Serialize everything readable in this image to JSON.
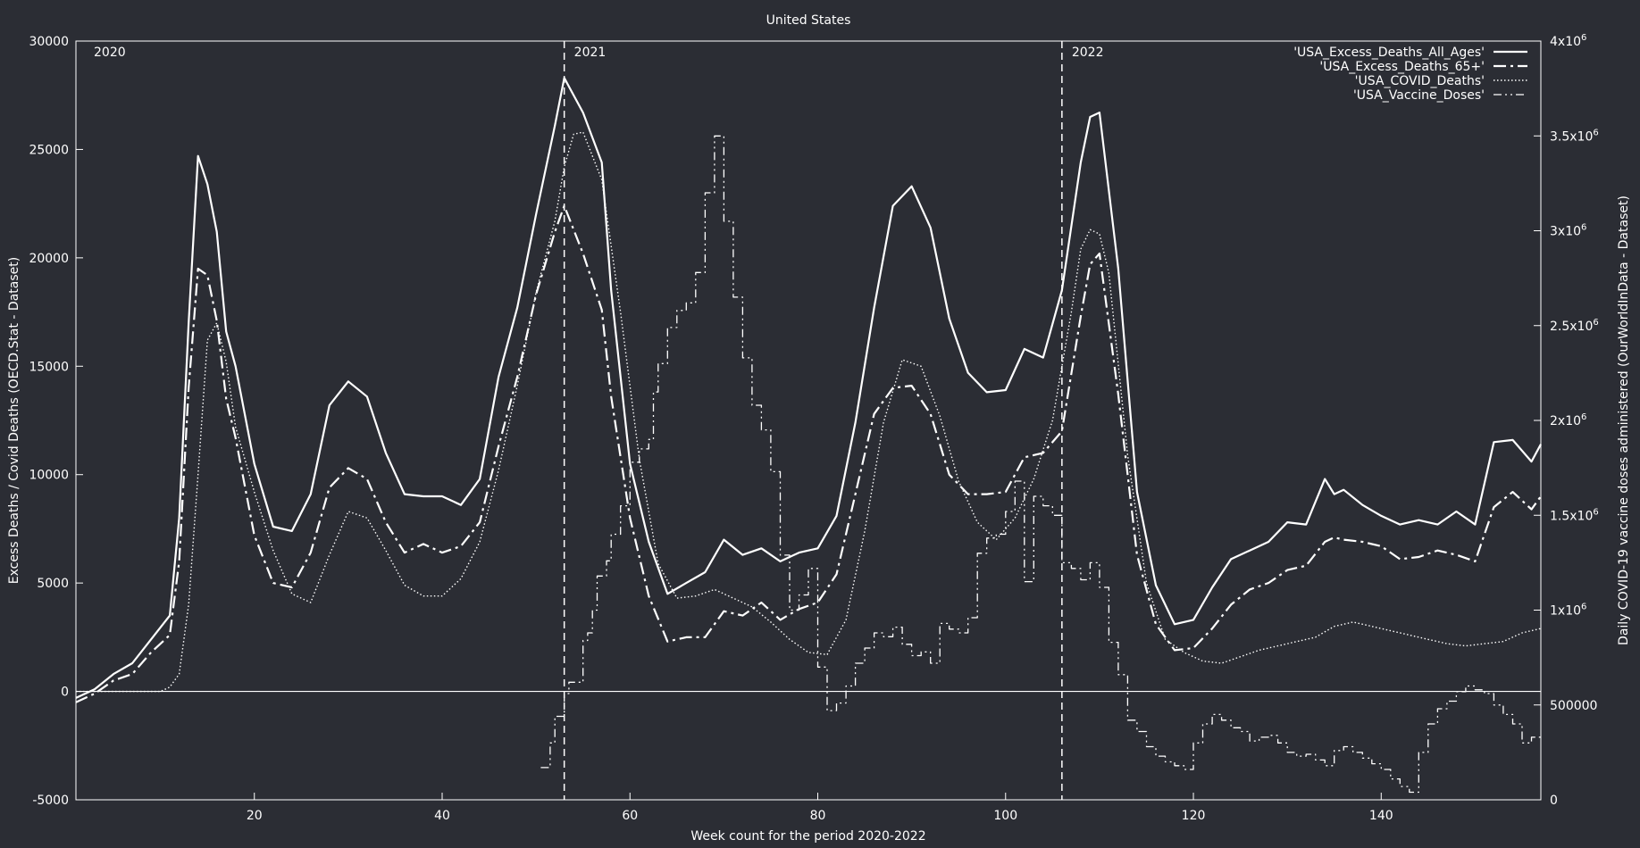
{
  "chart_data": {
    "type": "line",
    "title": "United States",
    "xlabel": "Week count for the period 2020-2022",
    "ylabel": "Excess Deaths / Covid Deaths (OECD.Stat - Dataset)",
    "y2label": "Daily COVID-19 vaccine doses administered (OurWorldInData - Dataset)",
    "xlim": [
      1,
      157
    ],
    "ylim": [
      -5000,
      30000
    ],
    "y2lim": [
      0,
      4000000
    ],
    "x_ticks": [
      20,
      40,
      60,
      80,
      100,
      120,
      140
    ],
    "y_ticks": [
      -5000,
      0,
      5000,
      10000,
      15000,
      20000,
      25000,
      30000
    ],
    "y2_ticks": [
      {
        "value": 0,
        "label": "0"
      },
      {
        "value": 500000,
        "label": "500000"
      },
      {
        "value": 1000000,
        "label": "1x10",
        "exp": "6"
      },
      {
        "value": 1500000,
        "label": "1.5x10",
        "exp": "6"
      },
      {
        "value": 2000000,
        "label": "2x10",
        "exp": "6"
      },
      {
        "value": 2500000,
        "label": "2.5x10",
        "exp": "6"
      },
      {
        "value": 3000000,
        "label": "3x10",
        "exp": "6"
      },
      {
        "value": 3500000,
        "label": "3.5x10",
        "exp": "6"
      },
      {
        "value": 4000000,
        "label": "4x10",
        "exp": "6"
      }
    ],
    "grid": false,
    "legend_position": "top-right",
    "year_markers": [
      {
        "label": "2020",
        "x": 1,
        "line": false
      },
      {
        "label": "2021",
        "x": 53,
        "line": true
      },
      {
        "label": "2022",
        "x": 106,
        "line": true
      }
    ],
    "colors": {
      "background": "#2b2d34",
      "foreground": "#ffffff"
    },
    "series": [
      {
        "name": "'USA_Excess_Deaths_All_Ages'",
        "axis": "y1",
        "dash": "solid",
        "x": [
          1,
          3,
          5,
          7,
          9,
          11,
          12,
          13,
          14,
          15,
          16,
          17,
          18,
          20,
          22,
          24,
          26,
          28,
          30,
          32,
          34,
          36,
          38,
          40,
          42,
          44,
          46,
          48,
          50,
          52,
          53,
          55,
          57,
          58,
          60,
          62,
          64,
          66,
          68,
          70,
          72,
          74,
          76,
          78,
          80,
          82,
          84,
          86,
          88,
          90,
          92,
          94,
          96,
          98,
          100,
          102,
          104,
          106,
          108,
          109,
          110,
          112,
          114,
          116,
          118,
          120,
          122,
          124,
          126,
          128,
          130,
          132,
          134,
          135,
          136,
          138,
          140,
          142,
          144,
          146,
          148,
          150,
          152,
          154,
          156,
          157
        ],
        "y": [
          -300,
          100,
          800,
          1300,
          2400,
          3500,
          8000,
          17000,
          24700,
          23400,
          21200,
          16600,
          15000,
          10500,
          7600,
          7400,
          9100,
          13200,
          14300,
          13600,
          11000,
          9100,
          9000,
          9000,
          8600,
          9800,
          14500,
          17700,
          22000,
          26100,
          28300,
          26700,
          24400,
          18500,
          10500,
          6900,
          4500,
          5000,
          5500,
          7000,
          6300,
          6600,
          6000,
          6400,
          6600,
          8100,
          12400,
          17700,
          22400,
          23300,
          21400,
          17200,
          14700,
          13800,
          13900,
          15800,
          15400,
          18500,
          24400,
          26500,
          26700,
          19500,
          9200,
          4900,
          3100,
          3300,
          4800,
          6100,
          6500,
          6900,
          7800,
          7700,
          9800,
          9100,
          9300,
          8600,
          8100,
          7700,
          7900,
          7700,
          8300,
          7700,
          11500,
          11600,
          10600,
          11400
        ]
      },
      {
        "name": "'USA_Excess_Deaths_65+'",
        "axis": "y1",
        "dash": "dashdot",
        "x": [
          1,
          3,
          5,
          7,
          9,
          11,
          12,
          13,
          14,
          15,
          16,
          17,
          18,
          20,
          22,
          24,
          26,
          28,
          30,
          32,
          34,
          36,
          38,
          40,
          42,
          44,
          46,
          48,
          50,
          52,
          53,
          55,
          57,
          58,
          60,
          62,
          64,
          66,
          68,
          70,
          72,
          74,
          76,
          78,
          80,
          82,
          84,
          86,
          88,
          90,
          92,
          94,
          96,
          98,
          100,
          102,
          104,
          106,
          108,
          109,
          110,
          112,
          114,
          116,
          118,
          120,
          122,
          124,
          126,
          128,
          130,
          132,
          134,
          135,
          136,
          138,
          140,
          142,
          144,
          146,
          148,
          150,
          152,
          154,
          156,
          157
        ],
        "y": [
          -500,
          -100,
          500,
          800,
          1800,
          2600,
          6000,
          14000,
          19500,
          19200,
          17100,
          13500,
          11700,
          7200,
          5000,
          4800,
          6400,
          9400,
          10300,
          9800,
          7800,
          6400,
          6800,
          6400,
          6700,
          7800,
          11300,
          14500,
          18300,
          21200,
          22400,
          20200,
          17600,
          13600,
          8000,
          4400,
          2300,
          2500,
          2500,
          3700,
          3500,
          4100,
          3300,
          3800,
          4100,
          5400,
          9100,
          12800,
          14000,
          14100,
          12800,
          10000,
          9100,
          9100,
          9200,
          10800,
          11000,
          12000,
          17300,
          19700,
          20200,
          13700,
          6300,
          3100,
          1900,
          2000,
          2900,
          4000,
          4700,
          5000,
          5600,
          5800,
          6900,
          7100,
          7000,
          6900,
          6700,
          6100,
          6200,
          6500,
          6300,
          6000,
          8500,
          9200,
          8400,
          9000
        ]
      },
      {
        "name": "'USA_COVID_Deaths'",
        "axis": "y1",
        "dash": "dotted",
        "x": [
          1,
          5,
          10,
          11,
          12,
          13,
          14,
          15,
          16,
          17,
          18,
          20,
          22,
          24,
          26,
          28,
          30,
          32,
          34,
          36,
          38,
          40,
          42,
          44,
          46,
          48,
          50,
          52,
          53,
          54,
          55,
          57,
          59,
          61,
          63,
          65,
          67,
          69,
          71,
          73,
          75,
          77,
          79,
          81,
          83,
          85,
          87,
          89,
          91,
          93,
          95,
          97,
          99,
          101,
          103,
          105,
          107,
          108,
          109,
          110,
          111,
          113,
          115,
          117,
          119,
          121,
          123,
          125,
          127,
          129,
          131,
          133,
          135,
          137,
          139,
          141,
          143,
          145,
          147,
          149,
          151,
          153,
          155,
          157
        ],
        "y": [
          0,
          0,
          0,
          200,
          800,
          4000,
          10000,
          16200,
          17000,
          15200,
          12200,
          9200,
          6500,
          4500,
          4100,
          6300,
          8300,
          8000,
          6500,
          4900,
          4400,
          4400,
          5200,
          6900,
          10200,
          14100,
          18400,
          21700,
          24200,
          25700,
          25800,
          23600,
          17500,
          10700,
          5900,
          4300,
          4400,
          4700,
          4300,
          3900,
          3200,
          2400,
          1800,
          1700,
          3300,
          7400,
          12400,
          15300,
          15000,
          12700,
          9700,
          7800,
          7000,
          8000,
          9800,
          12500,
          17500,
          20400,
          21300,
          21100,
          19300,
          10900,
          5000,
          2400,
          1800,
          1400,
          1300,
          1600,
          1900,
          2100,
          2300,
          2500,
          3000,
          3200,
          3000,
          2800,
          2600,
          2400,
          2200,
          2100,
          2200,
          2300,
          2700,
          2900
        ]
      },
      {
        "name": "'USA_Vaccine_Doses'",
        "axis": "y2",
        "dash": "dashdotdot",
        "step": true,
        "x": [
          50.5,
          51.5,
          52,
          53,
          53.5,
          55,
          55.5,
          56,
          56.5,
          57.5,
          58,
          59,
          60,
          61,
          62,
          62.5,
          63,
          64,
          65,
          66,
          67,
          68,
          69,
          70,
          71,
          72,
          73,
          74,
          75,
          76,
          77,
          78,
          79,
          80,
          81,
          82,
          83,
          84,
          85,
          86,
          87,
          88,
          89,
          90,
          91,
          92,
          93,
          94,
          95,
          96,
          97,
          98,
          99,
          100,
          101,
          102,
          103,
          104,
          105,
          106,
          107,
          108,
          109,
          110,
          111,
          112,
          113,
          114,
          115,
          116,
          117,
          118,
          119,
          120,
          121,
          122,
          123,
          124,
          125,
          126,
          127,
          128,
          129,
          130,
          131,
          132,
          133,
          134,
          135,
          136,
          137,
          138,
          139,
          140,
          141,
          142,
          143,
          144,
          145,
          146,
          147,
          148,
          149,
          150,
          151,
          152,
          153,
          154,
          155,
          156,
          157
        ],
        "y": [
          170000,
          300000,
          440000,
          560000,
          620000,
          840000,
          880000,
          1000000,
          1180000,
          1260000,
          1400000,
          1550000,
          1780000,
          1850000,
          1900000,
          2150000,
          2300000,
          2490000,
          2580000,
          2620000,
          2780000,
          3200000,
          3500000,
          3050000,
          2650000,
          2330000,
          2080000,
          1950000,
          1730000,
          1290000,
          1000000,
          1080000,
          1220000,
          700000,
          470000,
          510000,
          600000,
          720000,
          800000,
          880000,
          860000,
          910000,
          820000,
          760000,
          780000,
          720000,
          930000,
          900000,
          880000,
          960000,
          1300000,
          1380000,
          1400000,
          1520000,
          1680000,
          1150000,
          1600000,
          1550000,
          1500000,
          1250000,
          1220000,
          1160000,
          1250000,
          1120000,
          830000,
          660000,
          420000,
          360000,
          280000,
          230000,
          200000,
          180000,
          160000,
          300000,
          400000,
          450000,
          420000,
          380000,
          360000,
          310000,
          330000,
          340000,
          300000,
          250000,
          230000,
          240000,
          210000,
          180000,
          260000,
          280000,
          250000,
          220000,
          190000,
          160000,
          110000,
          70000,
          40000,
          250000,
          400000,
          480000,
          520000,
          570000,
          600000,
          580000,
          560000,
          500000,
          450000,
          400000,
          300000,
          330000,
          320000
        ]
      }
    ]
  }
}
